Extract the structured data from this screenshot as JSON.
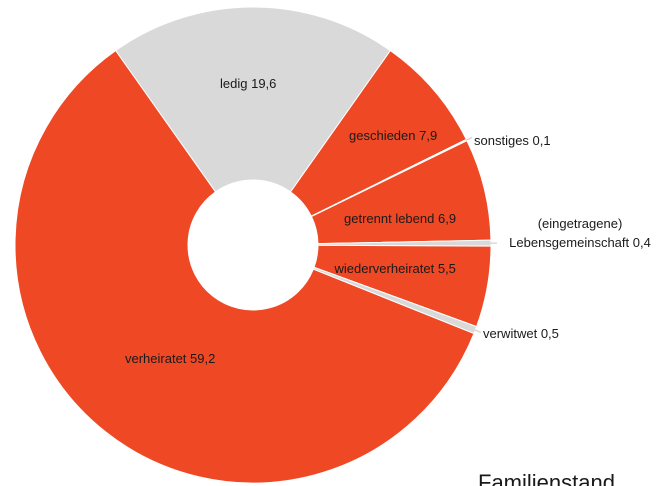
{
  "chart_data": {
    "type": "donut",
    "title": "Familienstand",
    "categories": [
      "ledig",
      "geschieden",
      "sonstiges",
      "getrennt lebend",
      "(eingetragene) Lebensgemeinschaft",
      "wiederverheiratet",
      "verwitwet",
      "verheiratet"
    ],
    "values": [
      19.6,
      7.9,
      0.1,
      6.9,
      0.4,
      5.5,
      0.5,
      59.2
    ],
    "value_labels": [
      "19,6",
      "7,9",
      "0,1",
      "6,9",
      "0,4",
      "5,5",
      "0,5",
      "59,2"
    ],
    "colors": [
      "#d9d9d9",
      "#ee4824",
      "#ffffff",
      "#ee4824",
      "#d9d9d9",
      "#ee4824",
      "#d9d9d9",
      "#ee4824"
    ]
  }
}
